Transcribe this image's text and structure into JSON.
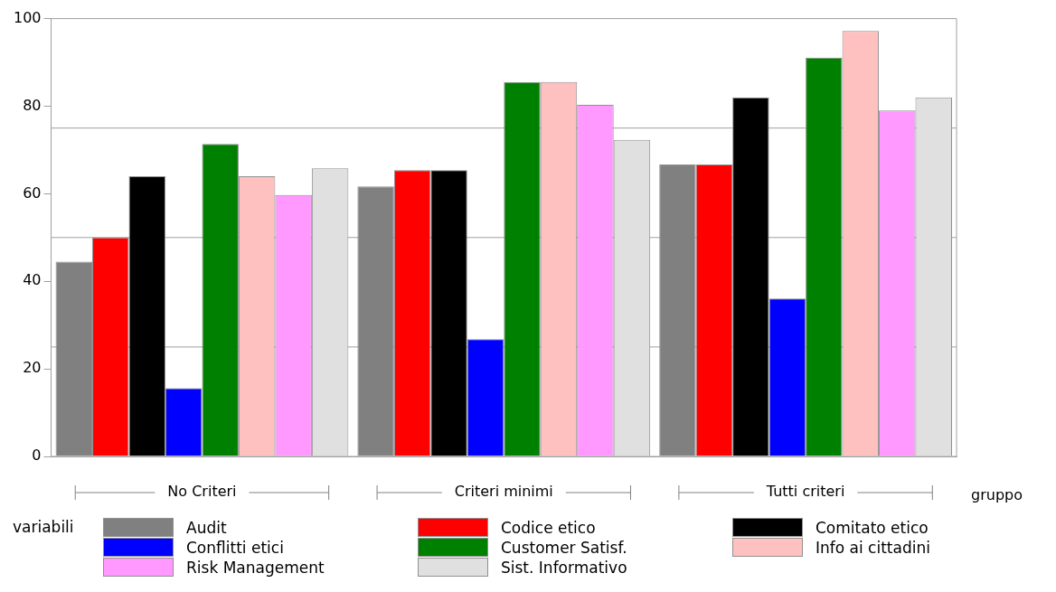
{
  "chart_data": {
    "type": "bar",
    "categories": [
      "No Criteri",
      "Criteri minimi",
      "Tutti criteri"
    ],
    "xlabel": "gruppo",
    "legend_title": "variabili",
    "legend": "bottom",
    "grid": false,
    "ylim": [
      0,
      100
    ],
    "yticks": [
      0,
      20,
      40,
      60,
      80,
      100
    ],
    "ref_lines": [
      {
        "axis": "y",
        "value": 25,
        "color": "#a0a0a0"
      },
      {
        "axis": "y",
        "value": 50,
        "color": "#a0a0a0"
      },
      {
        "axis": "y",
        "value": 75,
        "color": "#a0a0a0"
      }
    ],
    "series": [
      {
        "name": "Audit",
        "color": "#808080",
        "values": [
          44.5,
          61.7,
          66.7
        ]
      },
      {
        "name": "Codice etico",
        "color": "#ff0000",
        "values": [
          50,
          65.4,
          66.7
        ]
      },
      {
        "name": "Comitato etico",
        "color": "#000000",
        "values": [
          64,
          65.4,
          82
        ]
      },
      {
        "name": "Conflitti etici",
        "color": "#0000ff",
        "values": [
          15.6,
          26.8,
          36.1
        ]
      },
      {
        "name": "Customer Satisf.",
        "color": "#008000",
        "values": [
          71.4,
          85.5,
          91.1
        ]
      },
      {
        "name": "Info ai cittadini",
        "color": "#ffc0c0",
        "values": [
          64,
          85.5,
          97.2
        ]
      },
      {
        "name": "Risk Management",
        "color": "#ff99ff",
        "values": [
          59.7,
          80.3,
          79
        ]
      },
      {
        "name": "Sist. Informativo",
        "color": "#e0e0e0",
        "values": [
          65.8,
          72.3,
          82
        ]
      }
    ]
  }
}
